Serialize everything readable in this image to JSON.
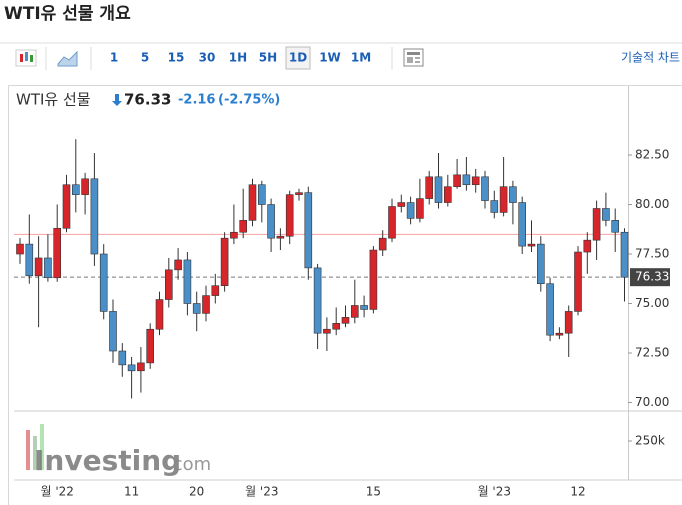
{
  "page": {
    "title": "WTI유 선물 개요",
    "toolbar": [
      "1",
      "5",
      "15",
      "30",
      "1H",
      "5H",
      "1D",
      "1W",
      "1M"
    ],
    "selected": "1D",
    "technical_chart": "기술적 차트"
  },
  "chart_data": {
    "type": "candlestick",
    "instrument": "WTI유 선물",
    "last_price": 76.33,
    "change": -2.16,
    "change_pct": "(-2.75%)",
    "watermark": "Investing",
    "watermark_suffix": ".com",
    "up_color": "#d6262b",
    "down_color": "#4b8fc9",
    "reference_line": 78.49,
    "reference_color": "#f2a3a3",
    "categories": [
      null,
      null,
      null,
      null,
      "월 '22",
      null,
      null,
      null,
      null,
      null,
      null,
      null,
      "11",
      null,
      null,
      null,
      null,
      null,
      null,
      "20",
      null,
      null,
      null,
      null,
      null,
      null,
      "월 '23",
      null,
      null,
      null,
      null,
      null,
      null,
      null,
      null,
      null,
      null,
      null,
      "15",
      null,
      null,
      null,
      null,
      null,
      null,
      null,
      null,
      null,
      null,
      null,
      null,
      "월 '23",
      null,
      null,
      null,
      null,
      null,
      null,
      null,
      null,
      "12",
      null,
      null,
      null,
      null,
      null
    ],
    "open": [
      77.5,
      78.0,
      76.4,
      77.3,
      76.3,
      78.8,
      81.0,
      80.5,
      81.3,
      77.5,
      74.6,
      72.6,
      71.9,
      71.6,
      72.0,
      73.7,
      75.2,
      76.7,
      77.2,
      75.0,
      74.5,
      75.4,
      75.9,
      78.3,
      78.6,
      79.2,
      81.0,
      80.0,
      78.3,
      78.4,
      80.5,
      80.6,
      76.8,
      73.5,
      73.7,
      74.0,
      74.3,
      74.9,
      74.7,
      77.7,
      78.3,
      79.9,
      80.1,
      79.3,
      80.3,
      81.4,
      80.1,
      80.9,
      81.5,
      81.0,
      81.4,
      80.2,
      79.6,
      80.9,
      80.1,
      77.9,
      78.0,
      76.0,
      73.4,
      73.5,
      74.6,
      77.6,
      78.2,
      79.8,
      79.2,
      78.6
    ],
    "high": [
      78.3,
      79.5,
      78.4,
      78.5,
      80.0,
      81.5,
      83.3,
      81.6,
      82.6,
      78.0,
      75.2,
      73.0,
      72.3,
      72.8,
      74.0,
      75.6,
      77.3,
      77.8,
      77.6,
      75.6,
      75.9,
      76.5,
      78.6,
      80.0,
      80.8,
      81.3,
      81.2,
      80.3,
      78.8,
      80.7,
      80.8,
      80.9,
      77.0,
      74.3,
      74.8,
      74.9,
      76.2,
      75.4,
      77.9,
      78.7,
      80.3,
      80.5,
      80.4,
      81.3,
      81.7,
      82.6,
      81.5,
      82.3,
      82.4,
      81.8,
      81.7,
      80.7,
      82.4,
      81.2,
      80.4,
      79.2,
      78.4,
      76.3,
      73.8,
      74.9,
      77.9,
      78.6,
      80.2,
      80.6,
      79.8,
      78.8
    ],
    "low": [
      77.0,
      76.0,
      73.8,
      76.1,
      76.1,
      78.6,
      79.6,
      79.5,
      76.9,
      74.2,
      72.0,
      71.3,
      70.2,
      70.5,
      71.7,
      73.4,
      74.8,
      76.2,
      74.4,
      73.6,
      74.1,
      75.0,
      75.6,
      78.0,
      78.3,
      78.9,
      79.1,
      77.6,
      77.7,
      78.0,
      80.2,
      76.2,
      72.7,
      72.6,
      73.4,
      73.8,
      74.0,
      74.3,
      74.5,
      77.4,
      78.1,
      79.6,
      79.0,
      79.1,
      80.0,
      79.8,
      79.9,
      80.8,
      80.7,
      80.6,
      79.8,
      79.3,
      79.4,
      79.0,
      77.5,
      77.6,
      75.6,
      73.1,
      73.2,
      72.3,
      74.4,
      76.5,
      77.2,
      78.9,
      77.6,
      75.1
    ],
    "close": [
      78.0,
      76.4,
      77.3,
      76.3,
      78.8,
      81.0,
      80.5,
      81.3,
      77.5,
      74.6,
      72.6,
      71.9,
      71.6,
      72.0,
      73.7,
      75.2,
      76.7,
      77.2,
      75.0,
      74.5,
      75.4,
      75.9,
      78.3,
      78.6,
      79.2,
      81.0,
      80.0,
      78.3,
      78.4,
      80.5,
      80.6,
      76.8,
      73.5,
      73.7,
      74.0,
      74.3,
      74.9,
      74.7,
      77.7,
      78.3,
      79.9,
      80.1,
      79.3,
      80.3,
      81.4,
      80.1,
      80.9,
      81.5,
      81.0,
      81.4,
      80.2,
      79.6,
      80.9,
      80.1,
      77.9,
      78.0,
      76.0,
      73.4,
      73.5,
      74.6,
      77.6,
      78.2,
      79.8,
      79.2,
      78.6,
      76.33
    ],
    "ylim": [
      69.62,
      84.27
    ],
    "yticks": [
      {
        "value": 82.5,
        "label": "82.50"
      },
      {
        "value": 80,
        "label": "80.00"
      },
      {
        "value": 77.5,
        "label": "77.50"
      },
      {
        "value": 75,
        "label": "75.00"
      },
      {
        "value": 72.5,
        "label": "72.50"
      },
      {
        "value": 70,
        "label": "70.00"
      }
    ],
    "y2lim": [
      0,
      500000
    ],
    "y2ticks": [
      {
        "value": 250000,
        "label": "250k"
      }
    ],
    "grid": false
  }
}
